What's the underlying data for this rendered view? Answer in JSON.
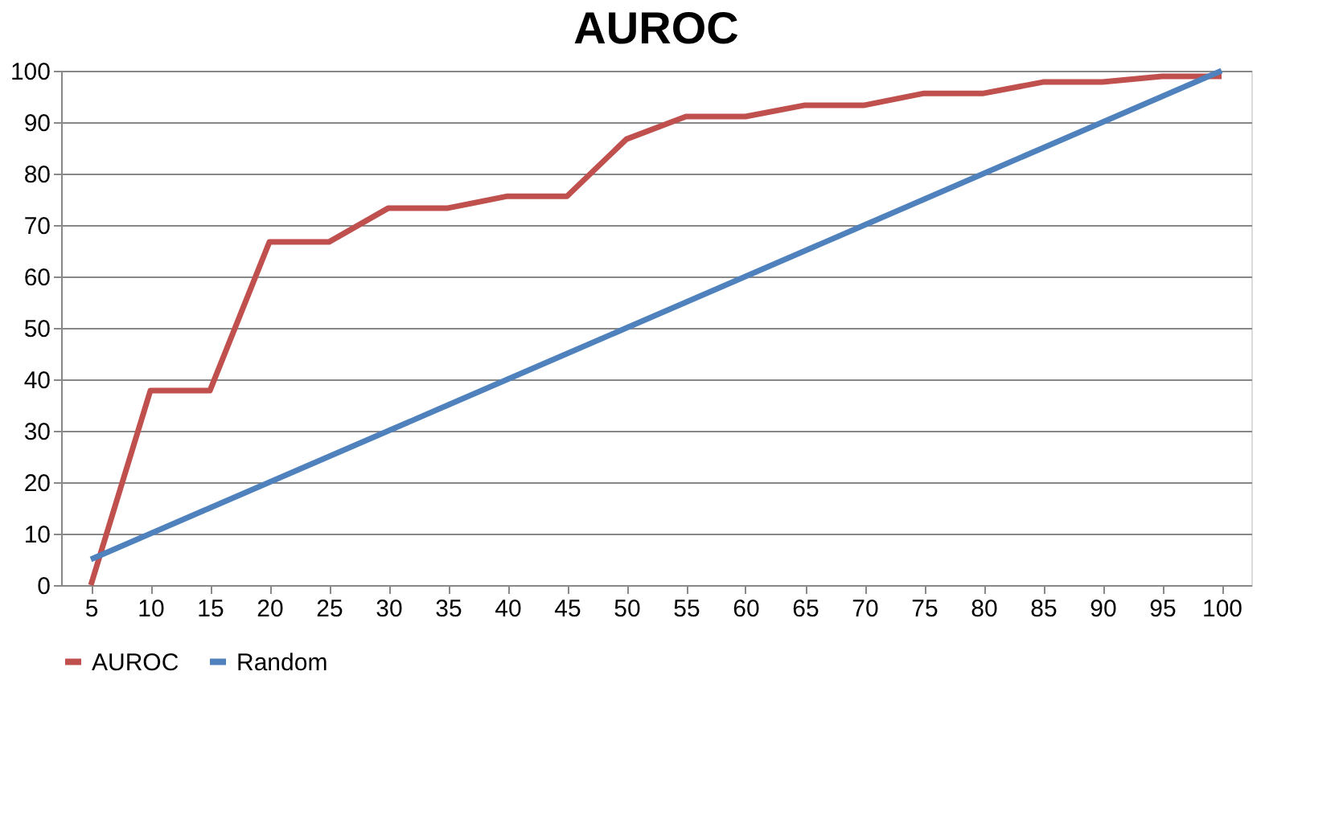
{
  "chart_data": {
    "type": "line",
    "title": "AUROC",
    "categories": [
      "5",
      "10",
      "15",
      "20",
      "25",
      "30",
      "35",
      "40",
      "45",
      "50",
      "55",
      "60",
      "65",
      "70",
      "75",
      "80",
      "85",
      "90",
      "95",
      "100"
    ],
    "series": [
      {
        "name": "AUROC",
        "color": "#c0504d",
        "values": [
          0,
          37.8,
          37.8,
          66.7,
          66.7,
          73.3,
          73.3,
          75.6,
          75.6,
          86.7,
          91.1,
          91.1,
          93.3,
          93.3,
          95.6,
          95.6,
          97.8,
          97.8,
          98.9,
          98.9
        ]
      },
      {
        "name": "Random",
        "color": "#4f81bd",
        "values": [
          5,
          10,
          15,
          20,
          25,
          30,
          35,
          40,
          45,
          50,
          55,
          60,
          65,
          70,
          75,
          80,
          85,
          90,
          95,
          100
        ]
      }
    ],
    "ylim": [
      0,
      100
    ],
    "yticks": [
      0,
      10,
      20,
      30,
      40,
      50,
      60,
      70,
      80,
      90,
      100
    ],
    "grid": "y",
    "legend": "bottom",
    "marker": "none",
    "line_style": "solid"
  }
}
